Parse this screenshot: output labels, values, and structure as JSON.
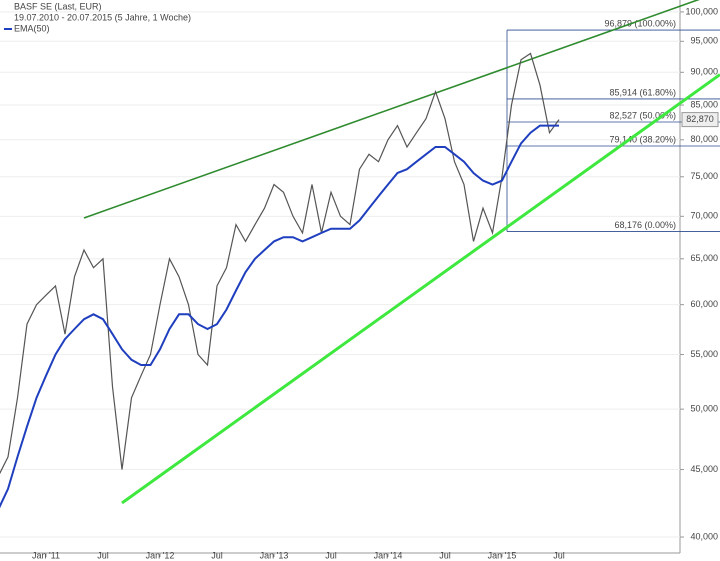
{
  "chart_data": {
    "type": "line",
    "subtitle": "19.07.2010 - 20.07.2015 (5 Jahre, 1 Woche)",
    "log_scale": true,
    "grid": true,
    "ylim": [
      38900,
      102100
    ],
    "yticks": [
      {
        "value": 40000,
        "label": "40,000"
      },
      {
        "value": 45000,
        "label": "45,000"
      },
      {
        "value": 50000,
        "label": "50,000"
      },
      {
        "value": 55000,
        "label": "55,000"
      },
      {
        "value": 60000,
        "label": "60,000"
      },
      {
        "value": 65000,
        "label": "65,000"
      },
      {
        "value": 70000,
        "label": "70,000"
      },
      {
        "value": 75000,
        "label": "75,000"
      },
      {
        "value": 80000,
        "label": "80,000"
      },
      {
        "value": 85000,
        "label": "85,000"
      },
      {
        "value": 90000,
        "label": "90,000"
      },
      {
        "value": 95000,
        "label": "95,000"
      },
      {
        "value": 100000,
        "label": "100,000"
      }
    ],
    "xticks": [
      {
        "value": "2011-01",
        "label": "Jan '11"
      },
      {
        "value": "2011-07",
        "label": "Jul"
      },
      {
        "value": "2012-01",
        "label": "Jan '12"
      },
      {
        "value": "2012-07",
        "label": "Jul"
      },
      {
        "value": "2013-01",
        "label": "Jan '13"
      },
      {
        "value": "2013-07",
        "label": "Jul"
      },
      {
        "value": "2014-01",
        "label": "Jan '14"
      },
      {
        "value": "2014-07",
        "label": "Jul"
      },
      {
        "value": "2015-01",
        "label": "Jan '15"
      },
      {
        "value": "2015-07",
        "label": "Jul"
      }
    ],
    "x": [
      "2010-08",
      "2010-09",
      "2010-10",
      "2010-11",
      "2010-12",
      "2011-01",
      "2011-02",
      "2011-03",
      "2011-04",
      "2011-05",
      "2011-06",
      "2011-07",
      "2011-08",
      "2011-09",
      "2011-10",
      "2011-11",
      "2011-12",
      "2012-01",
      "2012-02",
      "2012-03",
      "2012-04",
      "2012-05",
      "2012-06",
      "2012-07",
      "2012-08",
      "2012-09",
      "2012-10",
      "2012-11",
      "2012-12",
      "2013-01",
      "2013-02",
      "2013-03",
      "2013-04",
      "2013-05",
      "2013-06",
      "2013-07",
      "2013-08",
      "2013-09",
      "2013-10",
      "2013-11",
      "2013-12",
      "2014-01",
      "2014-02",
      "2014-03",
      "2014-04",
      "2014-05",
      "2014-06",
      "2014-07",
      "2014-08",
      "2014-09",
      "2014-10",
      "2014-11",
      "2014-12",
      "2015-01",
      "2015-02",
      "2015-03",
      "2015-04",
      "2015-05",
      "2015-06",
      "2015-07"
    ],
    "series": [
      {
        "name": "BASF SE (Last, EUR)",
        "color": "#555555",
        "values": [
          44500,
          46000,
          51000,
          58000,
          60000,
          61000,
          62000,
          57000,
          63000,
          66000,
          64000,
          65000,
          52000,
          45000,
          51000,
          53000,
          55000,
          60000,
          65000,
          63000,
          60000,
          55000,
          54000,
          62000,
          64000,
          69000,
          67000,
          69000,
          71000,
          74000,
          73000,
          70000,
          68000,
          74000,
          68000,
          73000,
          70000,
          69000,
          76000,
          78000,
          77000,
          80000,
          82000,
          79000,
          81000,
          83000,
          87000,
          83000,
          77000,
          74000,
          67000,
          71000,
          68000,
          75000,
          85000,
          92000,
          93000,
          88000,
          81000,
          82870
        ]
      },
      {
        "name": "EMA(50)",
        "color": "#1f3fbf",
        "values": [
          42000,
          43500,
          46000,
          48500,
          51000,
          53000,
          55000,
          56500,
          57500,
          58500,
          59000,
          58500,
          57000,
          55500,
          54500,
          54000,
          54000,
          55500,
          57500,
          59000,
          59000,
          58000,
          57500,
          58000,
          59500,
          61500,
          63500,
          65000,
          66000,
          67000,
          67500,
          67500,
          67000,
          67500,
          68000,
          68500,
          68500,
          68500,
          69500,
          71000,
          72500,
          74000,
          75500,
          76000,
          77000,
          78000,
          79000,
          79000,
          78000,
          77000,
          75500,
          74500,
          74000,
          74500,
          77000,
          79500,
          81000,
          82000,
          82000,
          82000
        ]
      }
    ],
    "last_label": {
      "value": 82870,
      "label": "82,870"
    },
    "levels": [
      {
        "value": 96879,
        "label": "96,879 (100.00%)"
      },
      {
        "value": 85914,
        "label": "85,914 (61.80%)"
      },
      {
        "value": 82527,
        "label": "82,527 (50.00%)"
      },
      {
        "value": 79140,
        "label": "79,140 (38.20%)"
      },
      {
        "value": 68176,
        "label": "68,176 (0.00%)"
      }
    ],
    "trendlines": [
      {
        "color": "#2e8b2e",
        "x": [
          "2011-05",
          "2015-07"
        ],
        "values": [
          69800,
          93700
        ]
      },
      {
        "color": "#3ee83e",
        "x": [
          "2011-09",
          "2015-07"
        ],
        "values": [
          42450,
          73300
        ]
      }
    ]
  }
}
